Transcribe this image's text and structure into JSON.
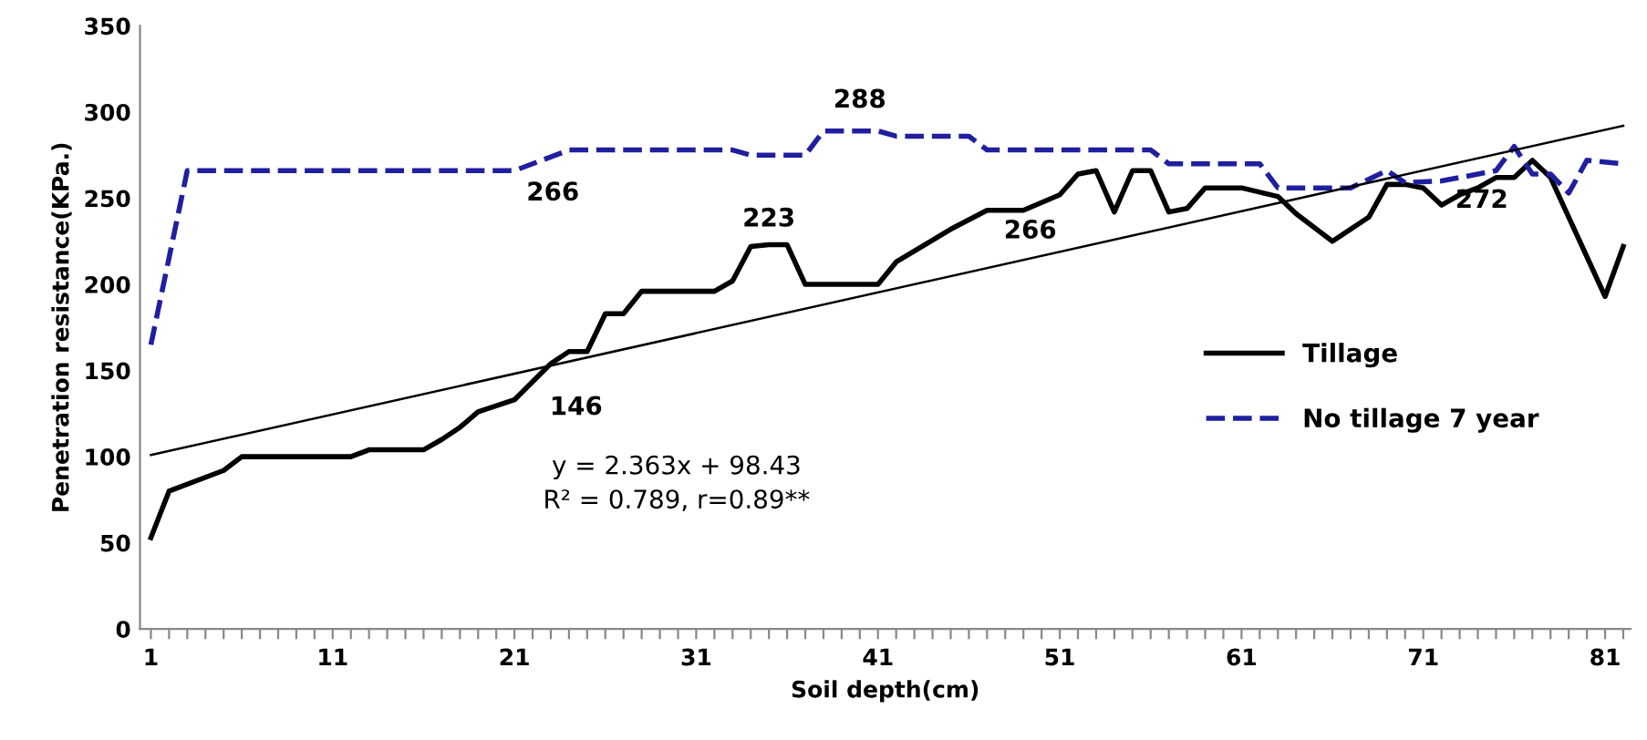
{
  "chart_data": {
    "type": "line",
    "xlabel": "Soil depth(cm)",
    "ylabel": "Penetration resistance(KPa.)",
    "xlim": [
      0.4,
      82.4
    ],
    "ylim": [
      0,
      350
    ],
    "xticks": [
      1,
      {
        "value": 2,
        "label": null
      },
      {
        "value": 3,
        "label": null
      },
      {
        "value": 4,
        "label": null
      },
      {
        "value": 5,
        "label": null
      },
      {
        "value": 6,
        "label": null
      },
      {
        "value": 7,
        "label": null
      },
      {
        "value": 8,
        "label": null
      },
      {
        "value": 9,
        "label": null
      },
      {
        "value": 10,
        "label": null
      },
      11,
      {
        "value": 12,
        "label": null
      },
      {
        "value": 13,
        "label": null
      },
      {
        "value": 14,
        "label": null
      },
      {
        "value": 15,
        "label": null
      },
      {
        "value": 16,
        "label": null
      },
      {
        "value": 17,
        "label": null
      },
      {
        "value": 18,
        "label": null
      },
      {
        "value": 19,
        "label": null
      },
      {
        "value": 20,
        "label": null
      },
      21,
      {
        "value": 22,
        "label": null
      },
      {
        "value": 23,
        "label": null
      },
      {
        "value": 24,
        "label": null
      },
      {
        "value": 25,
        "label": null
      },
      {
        "value": 26,
        "label": null
      },
      {
        "value": 27,
        "label": null
      },
      {
        "value": 28,
        "label": null
      },
      {
        "value": 29,
        "label": null
      },
      {
        "value": 30,
        "label": null
      },
      31,
      {
        "value": 32,
        "label": null
      },
      {
        "value": 33,
        "label": null
      },
      {
        "value": 34,
        "label": null
      },
      {
        "value": 35,
        "label": null
      },
      {
        "value": 36,
        "label": null
      },
      {
        "value": 37,
        "label": null
      },
      {
        "value": 38,
        "label": null
      },
      {
        "value": 39,
        "label": null
      },
      {
        "value": 40,
        "label": null
      },
      41,
      {
        "value": 42,
        "label": null
      },
      {
        "value": 43,
        "label": null
      },
      {
        "value": 44,
        "label": null
      },
      {
        "value": 45,
        "label": null
      },
      {
        "value": 46,
        "label": null
      },
      {
        "value": 47,
        "label": null
      },
      {
        "value": 48,
        "label": null
      },
      {
        "value": 49,
        "label": null
      },
      {
        "value": 50,
        "label": null
      },
      51,
      {
        "value": 52,
        "label": null
      },
      {
        "value": 53,
        "label": null
      },
      {
        "value": 54,
        "label": null
      },
      {
        "value": 55,
        "label": null
      },
      {
        "value": 56,
        "label": null
      },
      {
        "value": 57,
        "label": null
      },
      {
        "value": 58,
        "label": null
      },
      {
        "value": 59,
        "label": null
      },
      {
        "value": 60,
        "label": null
      },
      61,
      {
        "value": 62,
        "label": null
      },
      {
        "value": 63,
        "label": null
      },
      {
        "value": 64,
        "label": null
      },
      {
        "value": 65,
        "label": null
      },
      {
        "value": 66,
        "label": null
      },
      {
        "value": 67,
        "label": null
      },
      {
        "value": 68,
        "label": null
      },
      {
        "value": 69,
        "label": null
      },
      {
        "value": 70,
        "label": null
      },
      71,
      {
        "value": 72,
        "label": null
      },
      {
        "value": 73,
        "label": null
      },
      {
        "value": 74,
        "label": null
      },
      {
        "value": 75,
        "label": null
      },
      {
        "value": 76,
        "label": null
      },
      {
        "value": 77,
        "label": null
      },
      {
        "value": 78,
        "label": null
      },
      {
        "value": 79,
        "label": null
      },
      {
        "value": 80,
        "label": null
      },
      81,
      {
        "value": 82,
        "label": null
      }
    ],
    "yticks": [
      0,
      50,
      100,
      150,
      200,
      250,
      300,
      350
    ],
    "grid": false,
    "legend": "right",
    "marker": "none",
    "series": [
      {
        "name": "Tillage",
        "color": "#000000",
        "line_style": "solid",
        "x": [
          1,
          2,
          5,
          6,
          12,
          13,
          16,
          17,
          18,
          19,
          21,
          23,
          24,
          25,
          26,
          27,
          28,
          32,
          33,
          34,
          35,
          36,
          37,
          41,
          42,
          45,
          47,
          49,
          51,
          52,
          53,
          54,
          55,
          56,
          57,
          58,
          59,
          61,
          63,
          64,
          66,
          68,
          69,
          70,
          71,
          72,
          73,
          74,
          75,
          76,
          77,
          78,
          79,
          81,
          82
        ],
        "values": [
          53,
          80,
          92,
          100,
          100,
          104,
          104,
          110,
          117,
          126,
          133,
          154,
          161,
          161,
          183,
          183,
          196,
          196,
          202,
          222,
          223,
          223,
          200,
          200,
          213,
          232,
          243,
          243,
          252,
          264,
          266,
          242,
          266,
          266,
          242,
          244,
          256,
          256,
          251,
          241,
          225,
          239,
          258,
          258,
          256,
          246,
          252,
          256,
          262,
          262,
          272,
          262,
          239,
          193,
          222
        ]
      },
      {
        "name": "No tillage 7 year",
        "color": "#1f1fa0",
        "line_style": "dashed",
        "x": [
          1,
          3,
          21,
          24,
          33,
          34,
          37,
          38,
          41,
          42,
          46,
          47,
          56,
          57,
          62,
          63,
          67,
          69,
          70,
          72,
          75,
          76,
          77,
          78,
          79,
          80,
          82
        ],
        "values": [
          165,
          266,
          266,
          278,
          278,
          275,
          275,
          289,
          289,
          286,
          286,
          278,
          278,
          270,
          270,
          256,
          256,
          266,
          259,
          260,
          266,
          280,
          264,
          264,
          253,
          272,
          270
        ]
      },
      {
        "color": "#000000",
        "line_style": "solid",
        "x": [
          1,
          82
        ],
        "values": [
          101,
          292
        ]
      }
    ],
    "annotations": [
      {
        "text": "266",
        "x": 22,
        "y": 266
      },
      {
        "text": "146",
        "x": 23,
        "y": 146
      },
      {
        "text": "223",
        "x": 35,
        "y": 223
      },
      {
        "text": "288",
        "x": 40,
        "y": 289
      },
      {
        "text": "266",
        "x": 53,
        "y": 266
      },
      {
        "text": "272",
        "x": 77,
        "y": 272
      },
      "y = 2.363x + 98.43\nR² = 0.789, r=0.89**"
    ]
  }
}
